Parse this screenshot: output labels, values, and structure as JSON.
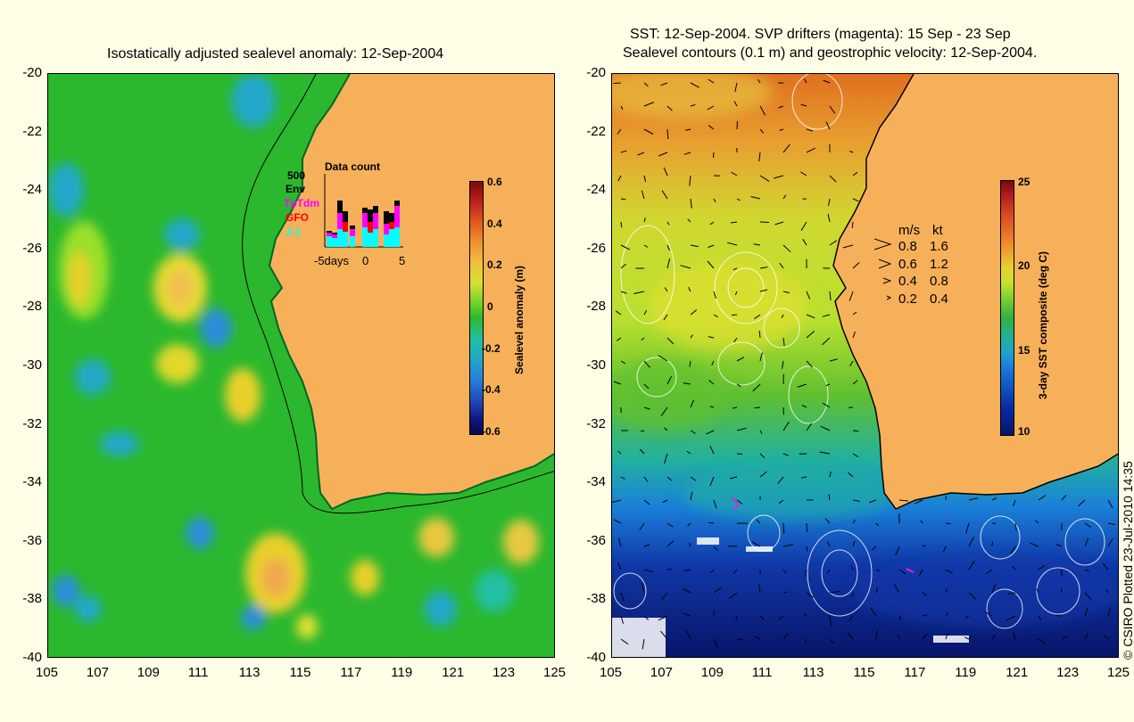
{
  "left": {
    "title": "Isostatically adjusted sealevel anomaly: 12-Sep-2004",
    "colorbar_label": "Sealevel anomaly (m)",
    "colorbar_ticks": [
      "0.6",
      "0.4",
      "0.2",
      "0",
      "-0.2",
      "-0.4",
      "-0.6"
    ],
    "inset": {
      "title": "Data count",
      "ymax_label": "500",
      "legend": [
        "Env",
        "TpTdm",
        "GFO",
        "J-1"
      ],
      "legend_colors": [
        "#000000",
        "#ff00ff",
        "#ff0000",
        "#00ffff"
      ],
      "xticks": [
        "-5days",
        "0",
        "5"
      ]
    }
  },
  "right": {
    "title_line1": "SST: 12-Sep-2004. SVP drifters (magenta): 15 Sep - 23 Sep",
    "title_line2": "Sealevel contours (0.1 m) and geostrophic velocity: 12-Sep-2004.",
    "colorbar_label": "3-day SST composite (deg C)",
    "colorbar_ticks": [
      "25",
      "20",
      "15",
      "10"
    ],
    "velocity_legend": {
      "header_ms": "m/s",
      "header_kt": "kt",
      "rows": [
        {
          "ms": "0.8",
          "kt": "1.6"
        },
        {
          "ms": "0.6",
          "kt": "1.2"
        },
        {
          "ms": "0.4",
          "kt": "0.8"
        },
        {
          "ms": "0.2",
          "kt": "0.4"
        }
      ]
    }
  },
  "axes": {
    "yticks": [
      "-20",
      "-22",
      "-24",
      "-26",
      "-28",
      "-30",
      "-32",
      "-34",
      "-36",
      "-38",
      "-40"
    ],
    "xticks": [
      "105",
      "107",
      "109",
      "111",
      "113",
      "115",
      "117",
      "119",
      "121",
      "123",
      "125"
    ]
  },
  "copyright": "© CSIRO Plotted 23-Jul-2010 14:35",
  "colors": {
    "land": "#f7b05a",
    "background": "#ffffe7",
    "ssh_base": "#2bb82e"
  }
}
